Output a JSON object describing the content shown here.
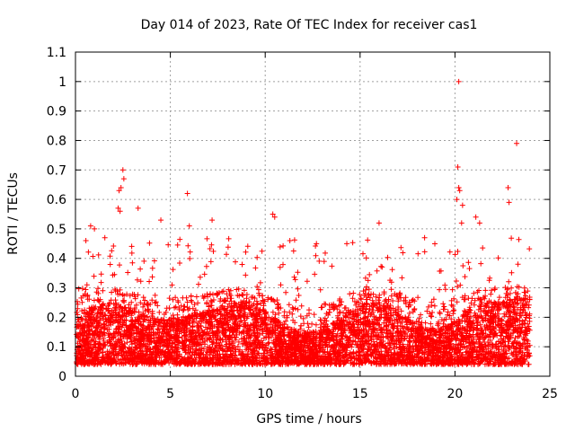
{
  "chart_data": {
    "type": "scatter",
    "title": "Day 014 of 2023, Rate Of TEC Index for receiver cas1",
    "xlabel": "GPS time / hours",
    "ylabel": "ROTI / TECUs",
    "xlim": [
      0,
      25
    ],
    "ylim": [
      0,
      1.1
    ],
    "xticks": [
      0,
      5,
      10,
      15,
      20,
      25
    ],
    "yticks": [
      0,
      0.1,
      0.2,
      0.3,
      0.4,
      0.5,
      0.6,
      0.7,
      0.8,
      0.9,
      1,
      1.1
    ],
    "grid": true,
    "marker": "+",
    "color": "#ff0000",
    "series": [
      {
        "name": "ROTI",
        "description": "dense scatter of ROTI values between ~0 and ~0.3 over 0-24 h with outliers",
        "outliers": [
          {
            "x": 20.2,
            "y": 1.0
          },
          {
            "x": 23.25,
            "y": 0.79
          },
          {
            "x": 2.5,
            "y": 0.7
          },
          {
            "x": 20.15,
            "y": 0.71
          },
          {
            "x": 2.55,
            "y": 0.67
          },
          {
            "x": 2.4,
            "y": 0.64
          },
          {
            "x": 2.3,
            "y": 0.63
          },
          {
            "x": 22.8,
            "y": 0.64
          },
          {
            "x": 20.2,
            "y": 0.64
          },
          {
            "x": 20.25,
            "y": 0.63
          },
          {
            "x": 5.9,
            "y": 0.62
          },
          {
            "x": 20.1,
            "y": 0.6
          },
          {
            "x": 22.85,
            "y": 0.59
          },
          {
            "x": 20.4,
            "y": 0.58
          },
          {
            "x": 3.3,
            "y": 0.57
          },
          {
            "x": 2.25,
            "y": 0.57
          },
          {
            "x": 2.35,
            "y": 0.56
          },
          {
            "x": 10.4,
            "y": 0.55
          },
          {
            "x": 21.1,
            "y": 0.54
          },
          {
            "x": 10.5,
            "y": 0.54
          },
          {
            "x": 4.5,
            "y": 0.53
          },
          {
            "x": 7.2,
            "y": 0.53
          },
          {
            "x": 20.35,
            "y": 0.52
          },
          {
            "x": 16.0,
            "y": 0.52
          },
          {
            "x": 21.3,
            "y": 0.52
          },
          {
            "x": 6.0,
            "y": 0.51
          },
          {
            "x": 1.0,
            "y": 0.5
          },
          {
            "x": 0.8,
            "y": 0.51
          },
          {
            "x": 18.4,
            "y": 0.47
          },
          {
            "x": 11.3,
            "y": 0.46
          },
          {
            "x": 14.3,
            "y": 0.45
          },
          {
            "x": 12.7,
            "y": 0.45
          },
          {
            "x": 0.55,
            "y": 0.46
          }
        ]
      }
    ]
  }
}
